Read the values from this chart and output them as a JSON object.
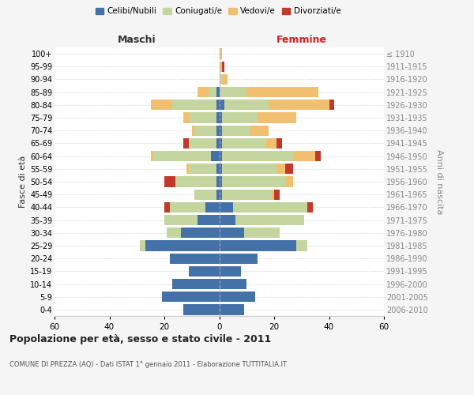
{
  "age_groups": [
    "0-4",
    "5-9",
    "10-14",
    "15-19",
    "20-24",
    "25-29",
    "30-34",
    "35-39",
    "40-44",
    "45-49",
    "50-54",
    "55-59",
    "60-64",
    "65-69",
    "70-74",
    "75-79",
    "80-84",
    "85-89",
    "90-94",
    "95-99",
    "100+"
  ],
  "birth_years": [
    "2006-2010",
    "2001-2005",
    "1996-2000",
    "1991-1995",
    "1986-1990",
    "1981-1985",
    "1976-1980",
    "1971-1975",
    "1966-1970",
    "1961-1965",
    "1956-1960",
    "1951-1955",
    "1946-1950",
    "1941-1945",
    "1936-1940",
    "1931-1935",
    "1926-1930",
    "1921-1925",
    "1916-1920",
    "1911-1915",
    "≤ 1910"
  ],
  "maschi": {
    "celibi": [
      13,
      21,
      17,
      11,
      18,
      27,
      14,
      8,
      5,
      1,
      1,
      1,
      3,
      1,
      1,
      1,
      1,
      1,
      0,
      0,
      0
    ],
    "coniugati": [
      0,
      0,
      0,
      0,
      0,
      2,
      5,
      12,
      13,
      8,
      15,
      10,
      21,
      10,
      8,
      10,
      16,
      3,
      0,
      0,
      0
    ],
    "vedovi": [
      0,
      0,
      0,
      0,
      0,
      0,
      0,
      0,
      0,
      0,
      0,
      1,
      1,
      0,
      1,
      2,
      8,
      4,
      0,
      0,
      0
    ],
    "divorziati": [
      0,
      0,
      0,
      0,
      0,
      0,
      0,
      0,
      2,
      0,
      4,
      0,
      0,
      2,
      0,
      0,
      0,
      0,
      0,
      0,
      0
    ]
  },
  "femmine": {
    "nubili": [
      9,
      13,
      10,
      8,
      14,
      28,
      9,
      6,
      5,
      1,
      1,
      1,
      1,
      1,
      1,
      1,
      2,
      0,
      0,
      0,
      0
    ],
    "coniugate": [
      0,
      0,
      0,
      0,
      0,
      4,
      13,
      25,
      27,
      18,
      23,
      20,
      26,
      16,
      10,
      13,
      16,
      10,
      1,
      0,
      0
    ],
    "vedove": [
      0,
      0,
      0,
      0,
      0,
      0,
      0,
      0,
      0,
      1,
      3,
      3,
      8,
      4,
      7,
      14,
      22,
      26,
      2,
      1,
      1
    ],
    "divorziate": [
      0,
      0,
      0,
      0,
      0,
      0,
      0,
      0,
      2,
      2,
      0,
      3,
      2,
      2,
      0,
      0,
      2,
      0,
      0,
      1,
      0
    ]
  },
  "colors": {
    "celibi_nubili": "#4472a8",
    "coniugati": "#c5d5a0",
    "vedovi": "#f0c070",
    "divorziati": "#c0392b"
  },
  "xlim": 60,
  "title": "Popolazione per età, sesso e stato civile - 2011",
  "subtitle": "COMUNE DI PREZZA (AQ) - Dati ISTAT 1° gennaio 2011 - Elaborazione TUTTITALIA.IT",
  "xlabel_left": "Maschi",
  "xlabel_right": "Femmine",
  "ylabel_left": "Fasce di età",
  "ylabel_right": "Anni di nascita",
  "legend_labels": [
    "Celibi/Nubili",
    "Coniugati/e",
    "Vedovi/e",
    "Divorziati/e"
  ],
  "bg_color": "#f5f5f5",
  "plot_bg": "#ffffff",
  "grid_color": "#cccccc"
}
